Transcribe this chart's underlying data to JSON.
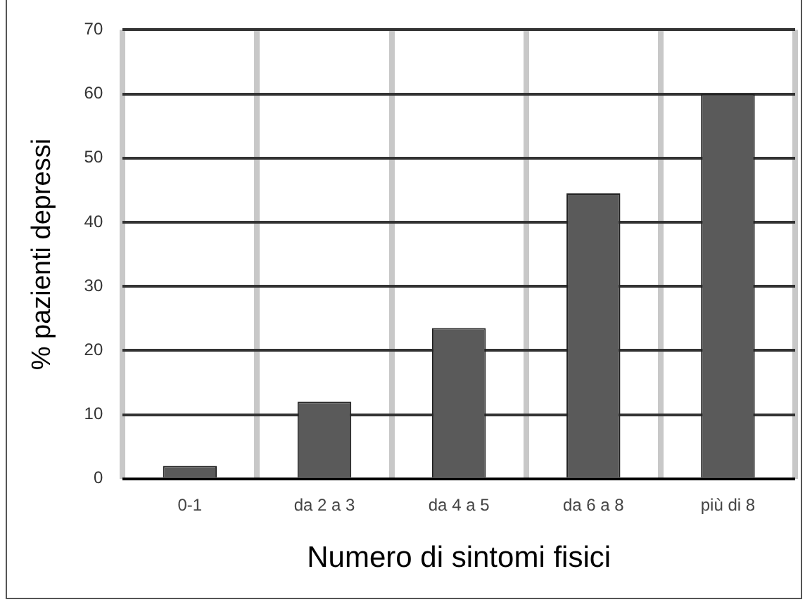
{
  "chart_data": {
    "type": "bar",
    "xlabel": "Numero di sintomi fisici",
    "ylabel": "% pazienti depressi",
    "categories": [
      "0-1",
      "da 2 a 3",
      "da 4 a 5",
      "da 6 a 8",
      "più di 8"
    ],
    "values": [
      2,
      12,
      23.5,
      44.5,
      60
    ],
    "color": "#5a5a5a",
    "ylim": [
      0,
      70
    ],
    "yticks": [
      0,
      10,
      20,
      30,
      40,
      50,
      60,
      70
    ],
    "grid": true
  }
}
